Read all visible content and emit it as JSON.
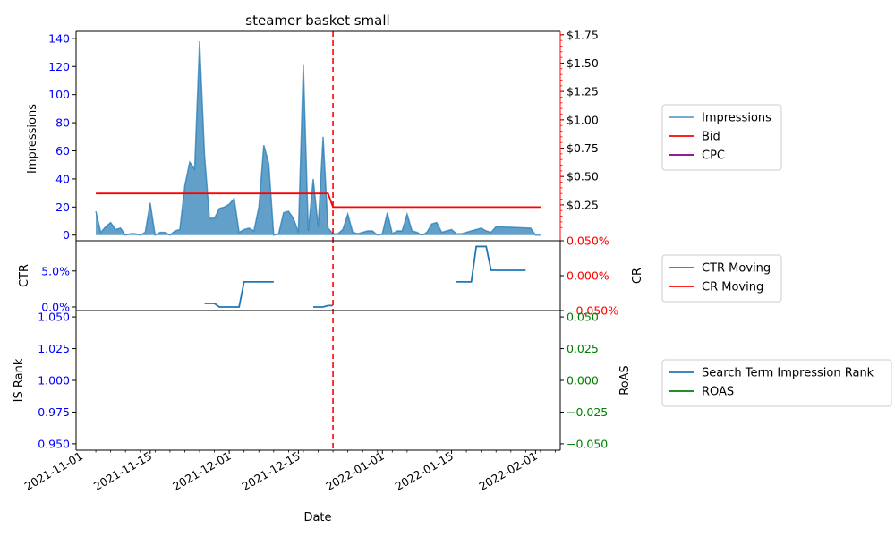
{
  "chart_data": [
    {
      "type": "area",
      "title": "steamer basket small",
      "ylabel": "Impressions",
      "y2label": "",
      "ylim": [
        -4,
        145
      ],
      "y2lim": [
        -0.0667,
        1.78
      ],
      "yticks": [
        0,
        20,
        40,
        60,
        80,
        100,
        120,
        140
      ],
      "y2ticks": [
        0.25,
        0.5,
        0.75,
        1.0,
        1.25,
        1.5,
        1.75
      ],
      "y2ticklabels": [
        "$0.25",
        "$0.50",
        "$0.75",
        "$1.00",
        "$1.25",
        "$1.50",
        "$1.75"
      ],
      "legend": [
        "Impressions",
        "Bid",
        "CPC"
      ],
      "legend_position": "right",
      "series": [
        {
          "name": "Impressions",
          "color": "#1f77b4",
          "axis": "left",
          "points": [
            [
              "2021-11-04",
              17
            ],
            [
              "2021-11-05",
              2
            ],
            [
              "2021-11-06",
              6
            ],
            [
              "2021-11-07",
              9
            ],
            [
              "2021-11-08",
              4
            ],
            [
              "2021-11-09",
              5
            ],
            [
              "2021-11-10",
              0
            ],
            [
              "2021-11-11",
              1
            ],
            [
              "2021-11-12",
              1
            ],
            [
              "2021-11-13",
              0
            ],
            [
              "2021-11-14",
              2
            ],
            [
              "2021-11-15",
              23
            ],
            [
              "2021-11-16",
              0
            ],
            [
              "2021-11-17",
              2
            ],
            [
              "2021-11-18",
              2
            ],
            [
              "2021-11-19",
              0
            ],
            [
              "2021-11-20",
              3
            ],
            [
              "2021-11-21",
              4
            ],
            [
              "2021-11-22",
              35
            ],
            [
              "2021-11-23",
              52
            ],
            [
              "2021-11-24",
              47
            ],
            [
              "2021-11-25",
              138
            ],
            [
              "2021-11-26",
              57
            ],
            [
              "2021-11-27",
              12
            ],
            [
              "2021-11-28",
              12
            ],
            [
              "2021-11-29",
              19
            ],
            [
              "2021-11-30",
              20
            ],
            [
              "2021-12-01",
              22
            ],
            [
              "2021-12-02",
              26
            ],
            [
              "2021-12-03",
              2
            ],
            [
              "2021-12-04",
              4
            ],
            [
              "2021-12-05",
              5
            ],
            [
              "2021-12-06",
              3
            ],
            [
              "2021-12-07",
              20
            ],
            [
              "2021-12-08",
              64
            ],
            [
              "2021-12-09",
              51
            ],
            [
              "2021-12-10",
              0
            ],
            [
              "2021-12-11",
              1
            ],
            [
              "2021-12-12",
              16
            ],
            [
              "2021-12-13",
              17
            ],
            [
              "2021-12-14",
              12
            ],
            [
              "2021-12-15",
              2
            ],
            [
              "2021-12-16",
              121
            ],
            [
              "2021-12-17",
              3
            ],
            [
              "2021-12-18",
              40
            ],
            [
              "2021-12-19",
              6
            ],
            [
              "2021-12-20",
              70
            ],
            [
              "2021-12-21",
              5
            ],
            [
              "2021-12-22",
              1
            ],
            [
              "2021-12-23",
              1
            ],
            [
              "2021-12-24",
              4
            ],
            [
              "2021-12-25",
              15
            ],
            [
              "2021-12-26",
              2
            ],
            [
              "2021-12-27",
              1
            ],
            [
              "2021-12-28",
              2
            ],
            [
              "2021-12-29",
              3
            ],
            [
              "2021-12-30",
              3
            ],
            [
              "2021-12-31",
              0
            ],
            [
              "2022-01-01",
              1
            ],
            [
              "2022-01-02",
              16
            ],
            [
              "2022-01-03",
              1
            ],
            [
              "2022-01-04",
              3
            ],
            [
              "2022-01-05",
              3
            ],
            [
              "2022-01-06",
              15
            ],
            [
              "2022-01-07",
              3
            ],
            [
              "2022-01-08",
              2
            ],
            [
              "2022-01-09",
              0
            ],
            [
              "2022-01-10",
              2
            ],
            [
              "2022-01-11",
              8
            ],
            [
              "2022-01-12",
              9
            ],
            [
              "2022-01-13",
              2
            ],
            [
              "2022-01-14",
              3
            ],
            [
              "2022-01-15",
              4
            ],
            [
              "2022-01-16",
              1
            ],
            [
              "2022-01-17",
              1
            ],
            [
              "2022-01-18",
              2
            ],
            [
              "2022-01-19",
              3
            ],
            [
              "2022-01-20",
              4
            ],
            [
              "2022-01-21",
              5
            ],
            [
              "2022-01-22",
              3
            ],
            [
              "2022-01-23",
              2
            ],
            [
              "2022-01-24",
              6
            ],
            [
              "2022-01-31",
              5
            ],
            [
              "2022-02-01",
              0
            ],
            [
              "2022-02-02",
              0
            ]
          ]
        },
        {
          "name": "Bid",
          "color": "#ff0000",
          "axis": "right",
          "points": [
            [
              "2021-11-04",
              0.35
            ],
            [
              "2021-12-21",
              0.35
            ],
            [
              "2021-12-22",
              0.23
            ],
            [
              "2022-02-02",
              0.23
            ]
          ]
        },
        {
          "name": "CPC",
          "color": "#800080",
          "axis": "right",
          "points": []
        }
      ],
      "annotations": [
        {
          "type": "vline",
          "x": "2021-12-22",
          "color": "#ff0000",
          "style": "dashed"
        }
      ]
    },
    {
      "type": "line",
      "ylabel": "CTR",
      "y2label": "CR",
      "ylim": [
        -0.005,
        0.092
      ],
      "y2lim": [
        -0.05,
        0.05
      ],
      "yticks": [
        0,
        0.05
      ],
      "yticklabels": [
        "0.0%",
        "5.0%"
      ],
      "y2ticks": [
        -0.05,
        0,
        0.05
      ],
      "y2ticklabels": [
        "−0.050%",
        "0.000%",
        "0.050%"
      ],
      "legend": [
        "CTR Moving",
        "CR Moving"
      ],
      "legend_position": "right",
      "series": [
        {
          "name": "CTR Moving",
          "color": "#1f77b4",
          "axis": "left",
          "segments": [
            [
              [
                "2021-11-26",
                0.005
              ],
              [
                "2021-11-28",
                0.005
              ],
              [
                "2021-11-29",
                0
              ],
              [
                "2021-12-03",
                0
              ],
              [
                "2021-12-04",
                0.035
              ],
              [
                "2021-12-10",
                0.035
              ]
            ],
            [
              [
                "2021-12-18",
                0
              ],
              [
                "2021-12-20",
                0
              ],
              [
                "2021-12-21",
                0.002
              ],
              [
                "2021-12-22",
                0.002
              ]
            ],
            [
              [
                "2022-01-16",
                0.035
              ],
              [
                "2022-01-19",
                0.035
              ],
              [
                "2022-01-20",
                0.084
              ],
              [
                "2022-01-22",
                0.084
              ],
              [
                "2022-01-23",
                0.051
              ],
              [
                "2022-01-30",
                0.051
              ]
            ]
          ]
        },
        {
          "name": "CR Moving",
          "color": "#ff0000",
          "axis": "right",
          "segments": []
        }
      ],
      "annotations": [
        {
          "type": "vline",
          "x": "2021-12-22",
          "color": "#ff0000",
          "style": "dashed"
        }
      ]
    },
    {
      "type": "line",
      "xlabel": "Date",
      "ylabel": "IS Rank",
      "y2label": "RoAS",
      "ylim": [
        0.945,
        1.055
      ],
      "y2lim": [
        -0.055,
        0.055
      ],
      "yticks": [
        0.95,
        0.975,
        1.0,
        1.025,
        1.05
      ],
      "yticklabels": [
        "0.950",
        "0.975",
        "1.000",
        "1.025",
        "1.050"
      ],
      "y2ticks": [
        -0.05,
        -0.025,
        0,
        0.025,
        0.05
      ],
      "y2ticklabels": [
        "−0.050",
        "−0.025",
        "0.000",
        "0.025",
        "0.050"
      ],
      "xlim": [
        "2021-10-31",
        "2022-02-06"
      ],
      "xticks": [
        "2021-11-01",
        "2021-11-15",
        "2021-12-01",
        "2021-12-15",
        "2022-01-01",
        "2022-01-15",
        "2022-02-01"
      ],
      "legend": [
        "Search Term Impression Rank",
        "ROAS"
      ],
      "legend_position": "right",
      "series": [
        {
          "name": "Search Term Impression Rank",
          "color": "#1f77b4",
          "axis": "left",
          "points": []
        },
        {
          "name": "ROAS",
          "color": "#008000",
          "axis": "right",
          "points": []
        }
      ],
      "annotations": [
        {
          "type": "vline",
          "x": "2021-12-22",
          "color": "#ff0000",
          "style": "dashed"
        }
      ]
    }
  ]
}
